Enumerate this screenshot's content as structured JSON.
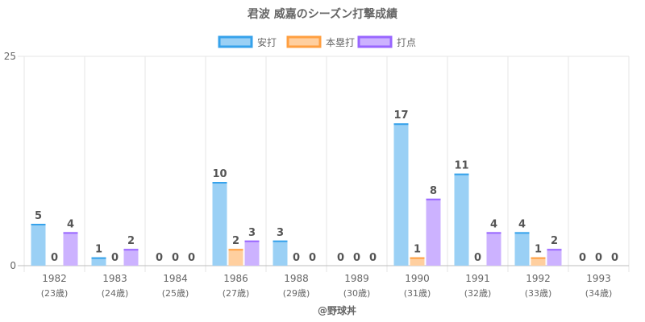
{
  "chart_data": {
    "type": "bar",
    "title": "君波 威嘉のシーズン打撃成績",
    "categories": [
      "1982",
      "1983",
      "1984",
      "1986",
      "1988",
      "1989",
      "1990",
      "1991",
      "1992",
      "1993"
    ],
    "category_sublabels": [
      "(23歳)",
      "(24歳)",
      "(25歳)",
      "(27歳)",
      "(29歳)",
      "(30歳)",
      "(31歳)",
      "(32歳)",
      "(33歳)",
      "(34歳)"
    ],
    "series": [
      {
        "name": "安打",
        "values": [
          5,
          1,
          0,
          10,
          3,
          0,
          17,
          11,
          4,
          0
        ],
        "fill": "#9ad0f5",
        "border": "#36a2eb"
      },
      {
        "name": "本塁打",
        "values": [
          0,
          0,
          0,
          2,
          0,
          0,
          1,
          0,
          1,
          0
        ],
        "fill": "#ffcf9f",
        "border": "#ff9f40"
      },
      {
        "name": "打点",
        "values": [
          4,
          2,
          0,
          3,
          0,
          0,
          8,
          4,
          2,
          0
        ],
        "fill": "#ccb2ff",
        "border": "#9966ff"
      }
    ],
    "ylim": [
      0,
      25
    ],
    "yticks": [
      "0",
      "25"
    ],
    "grid": true,
    "legend_position": "top",
    "xlabel": "",
    "ylabel": ""
  },
  "credit": "@野球丼"
}
